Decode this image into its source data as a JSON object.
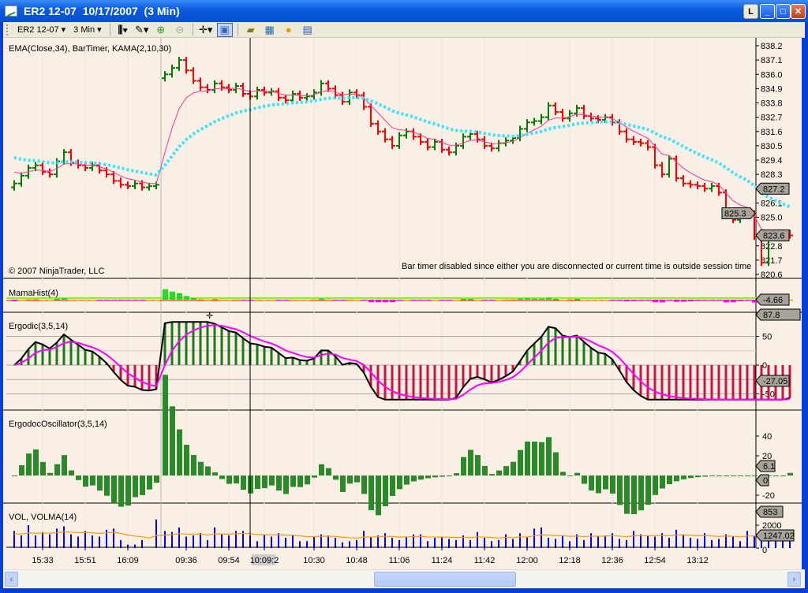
{
  "window": {
    "title": "ER2 12-07  10/17/2007  (3 Min)",
    "buttons": {
      "link": "L",
      "minimize": "_",
      "maximize": "□",
      "close": "✕"
    }
  },
  "toolbar": {
    "instrument": "ER2 12-07",
    "interval": "3 Min",
    "icons": [
      "bar-style-icon",
      "draw-pencil-icon",
      "zoom-in-icon",
      "zoom-out-icon",
      "crosshair-icon",
      "data-box-icon",
      "strategy-icon",
      "indicators-icon",
      "orders-dollar-icon",
      "properties-icon"
    ]
  },
  "panels": {
    "price": {
      "label": "EMA(Close,34), BarTimer, KAMA(2,10,30)",
      "copyright": "© 2007 NinjaTrader, LLC",
      "message": "Bar timer disabled since either you are disconnected or current time is outside session time",
      "axis": [
        "838.2",
        "837.1",
        "836.0",
        "834.9",
        "833.8",
        "832.7",
        "831.6",
        "830.5",
        "829.4",
        "828.3",
        "826.1",
        "825.0",
        "822.8",
        "821.7",
        "820.6"
      ],
      "tags": [
        "827.2",
        "825.3",
        "823.6"
      ]
    },
    "mamahist": {
      "label": "MamaHist(4)",
      "tag": "-4.66"
    },
    "ergodic": {
      "label": "Ergodic(3,5,14)",
      "axis": [
        "50",
        "0",
        "-50"
      ],
      "tags": [
        "87.8",
        "-27.05"
      ]
    },
    "oscillator": {
      "label": "ErgodocOscillator(3,5,14)",
      "axis": [
        "40",
        "20",
        "-20"
      ],
      "tags": [
        "6.1",
        "0"
      ]
    },
    "volume": {
      "label": "VOL, VOLMA(14)",
      "axis": [
        "2000",
        "0"
      ],
      "tags": [
        "1247.02",
        "853"
      ]
    }
  },
  "time_axis": [
    "15:33",
    "15:51",
    "16:09",
    "09:36",
    "09:54",
    "10:09:2",
    "10:30",
    "10:48",
    "11:06",
    "11:24",
    "11:42",
    "12:00",
    "12:18",
    "12:36",
    "12:54",
    "13:12"
  ],
  "colors": {
    "up": "#008000",
    "down": "#ff0000",
    "ema": "#ff3399",
    "kama": "#33e5ff",
    "ergodic_pos": "#1a7a1a",
    "ergodic_neg": "#cc1144",
    "signal": "#ff00ff",
    "volume": "#0000ff",
    "volma": "#ff9900"
  },
  "chart_data": {
    "type": "ohlc",
    "session1_closes": [
      827.6,
      828.2,
      828.8,
      829.0,
      828.5,
      828.3,
      829.3,
      830.0,
      829.2,
      829.0,
      828.8,
      829.0,
      828.6,
      828.3,
      827.8,
      827.5,
      827.4,
      827.6,
      827.3,
      827.4,
      827.5
    ],
    "session2_closes": [
      836.0,
      836.5,
      837.1,
      836.3,
      835.5,
      835.0,
      834.8,
      835.3,
      835.0,
      834.8,
      835.1,
      834.5,
      834.3,
      834.8,
      834.6,
      834.7,
      834.2,
      834.0,
      834.5,
      834.2,
      834.3,
      834.6,
      835.3,
      834.9,
      834.4,
      833.9,
      834.6,
      834.4,
      833.5,
      832.2,
      831.6,
      831.0,
      830.5,
      831.3,
      831.6,
      831.2,
      830.8,
      830.4,
      830.8,
      830.2,
      830.0,
      830.5,
      831.2,
      831.4,
      831.0,
      830.5,
      830.3,
      830.7,
      830.9,
      831.1,
      831.8,
      832.3,
      832.4,
      832.7,
      833.6,
      833.1,
      832.6,
      833.0,
      833.4,
      832.8,
      832.6,
      832.5,
      832.7,
      832.3,
      831.6,
      831.0,
      830.8,
      830.7,
      830.4,
      829.0,
      828.3,
      829.5,
      828.0,
      827.6,
      827.5,
      827.4,
      827.2,
      827.4,
      826.9,
      825.3,
      824.8,
      825.1,
      825.3,
      823.5,
      821.5,
      823.5,
      823.6,
      823.8,
      823.6
    ],
    "volume": [
      1500,
      1100,
      2000,
      1100,
      1400,
      1200,
      1700,
      1900,
      1200,
      1000,
      1500,
      1100,
      1000,
      1600,
      1700,
      700,
      300,
      300,
      700,
      0,
      2500,
      1500,
      1400,
      1800,
      1000,
      1100,
      1300,
      700,
      1800,
      1200,
      1100,
      1500,
      1500,
      1100,
      600,
      1200,
      1000,
      1300,
      900,
      1100,
      600,
      600,
      1000,
      1200,
      1100,
      900,
      500,
      600,
      700,
      1500,
      1000,
      1100,
      1300,
      900,
      700,
      1000,
      1200,
      1200,
      600,
      900,
      1000,
      800,
      700,
      1100,
      700,
      1400,
      900,
      600,
      700,
      1200,
      800,
      1300,
      1000,
      1700,
      1800,
      900,
      800,
      1100,
      600,
      1200,
      700,
      1300,
      1000,
      1100,
      1300,
      800,
      700,
      1500,
      1200,
      1100,
      1000,
      1300,
      900,
      1600,
      1200,
      900,
      800,
      1300,
      700,
      800,
      1200,
      1000,
      600,
      1500,
      1100,
      1200,
      700,
      1000,
      1400,
      900
    ],
    "ylim": [
      820.6,
      838.2
    ]
  }
}
